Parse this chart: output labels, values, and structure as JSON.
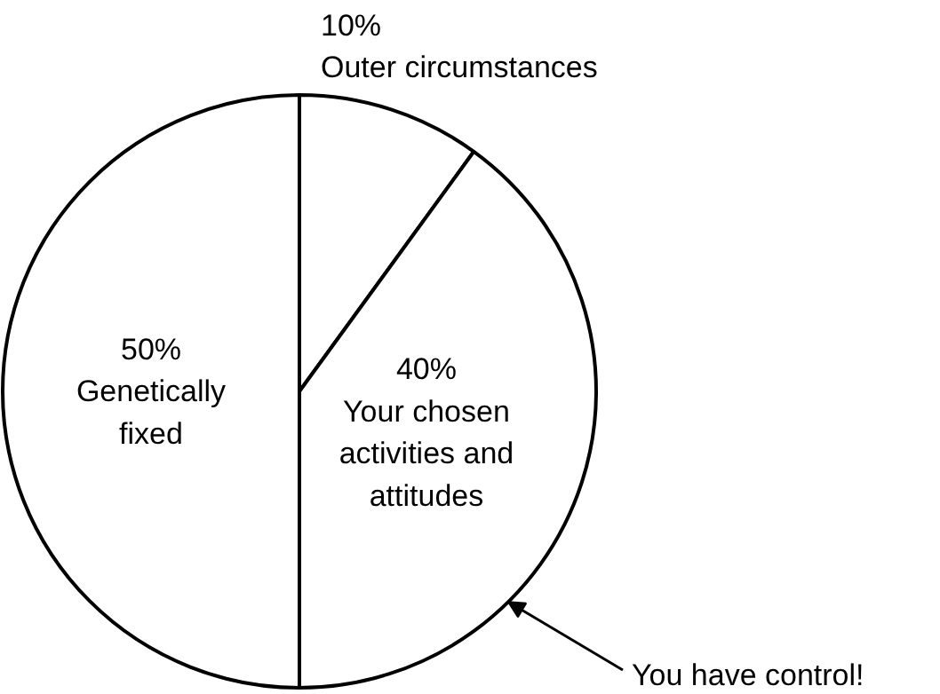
{
  "chart_data": {
    "type": "pie",
    "categories": [
      "Outer circumstances",
      "Your chosen\nactivities and\nattitudes",
      "Genetically\nfixed"
    ],
    "values": [
      10,
      40,
      50
    ],
    "value_labels": [
      "10%",
      "40%",
      "50%"
    ],
    "colors": [
      "#ffffff",
      "#ffffff",
      "#ffffff"
    ],
    "annotations": [
      "You have control!"
    ]
  }
}
